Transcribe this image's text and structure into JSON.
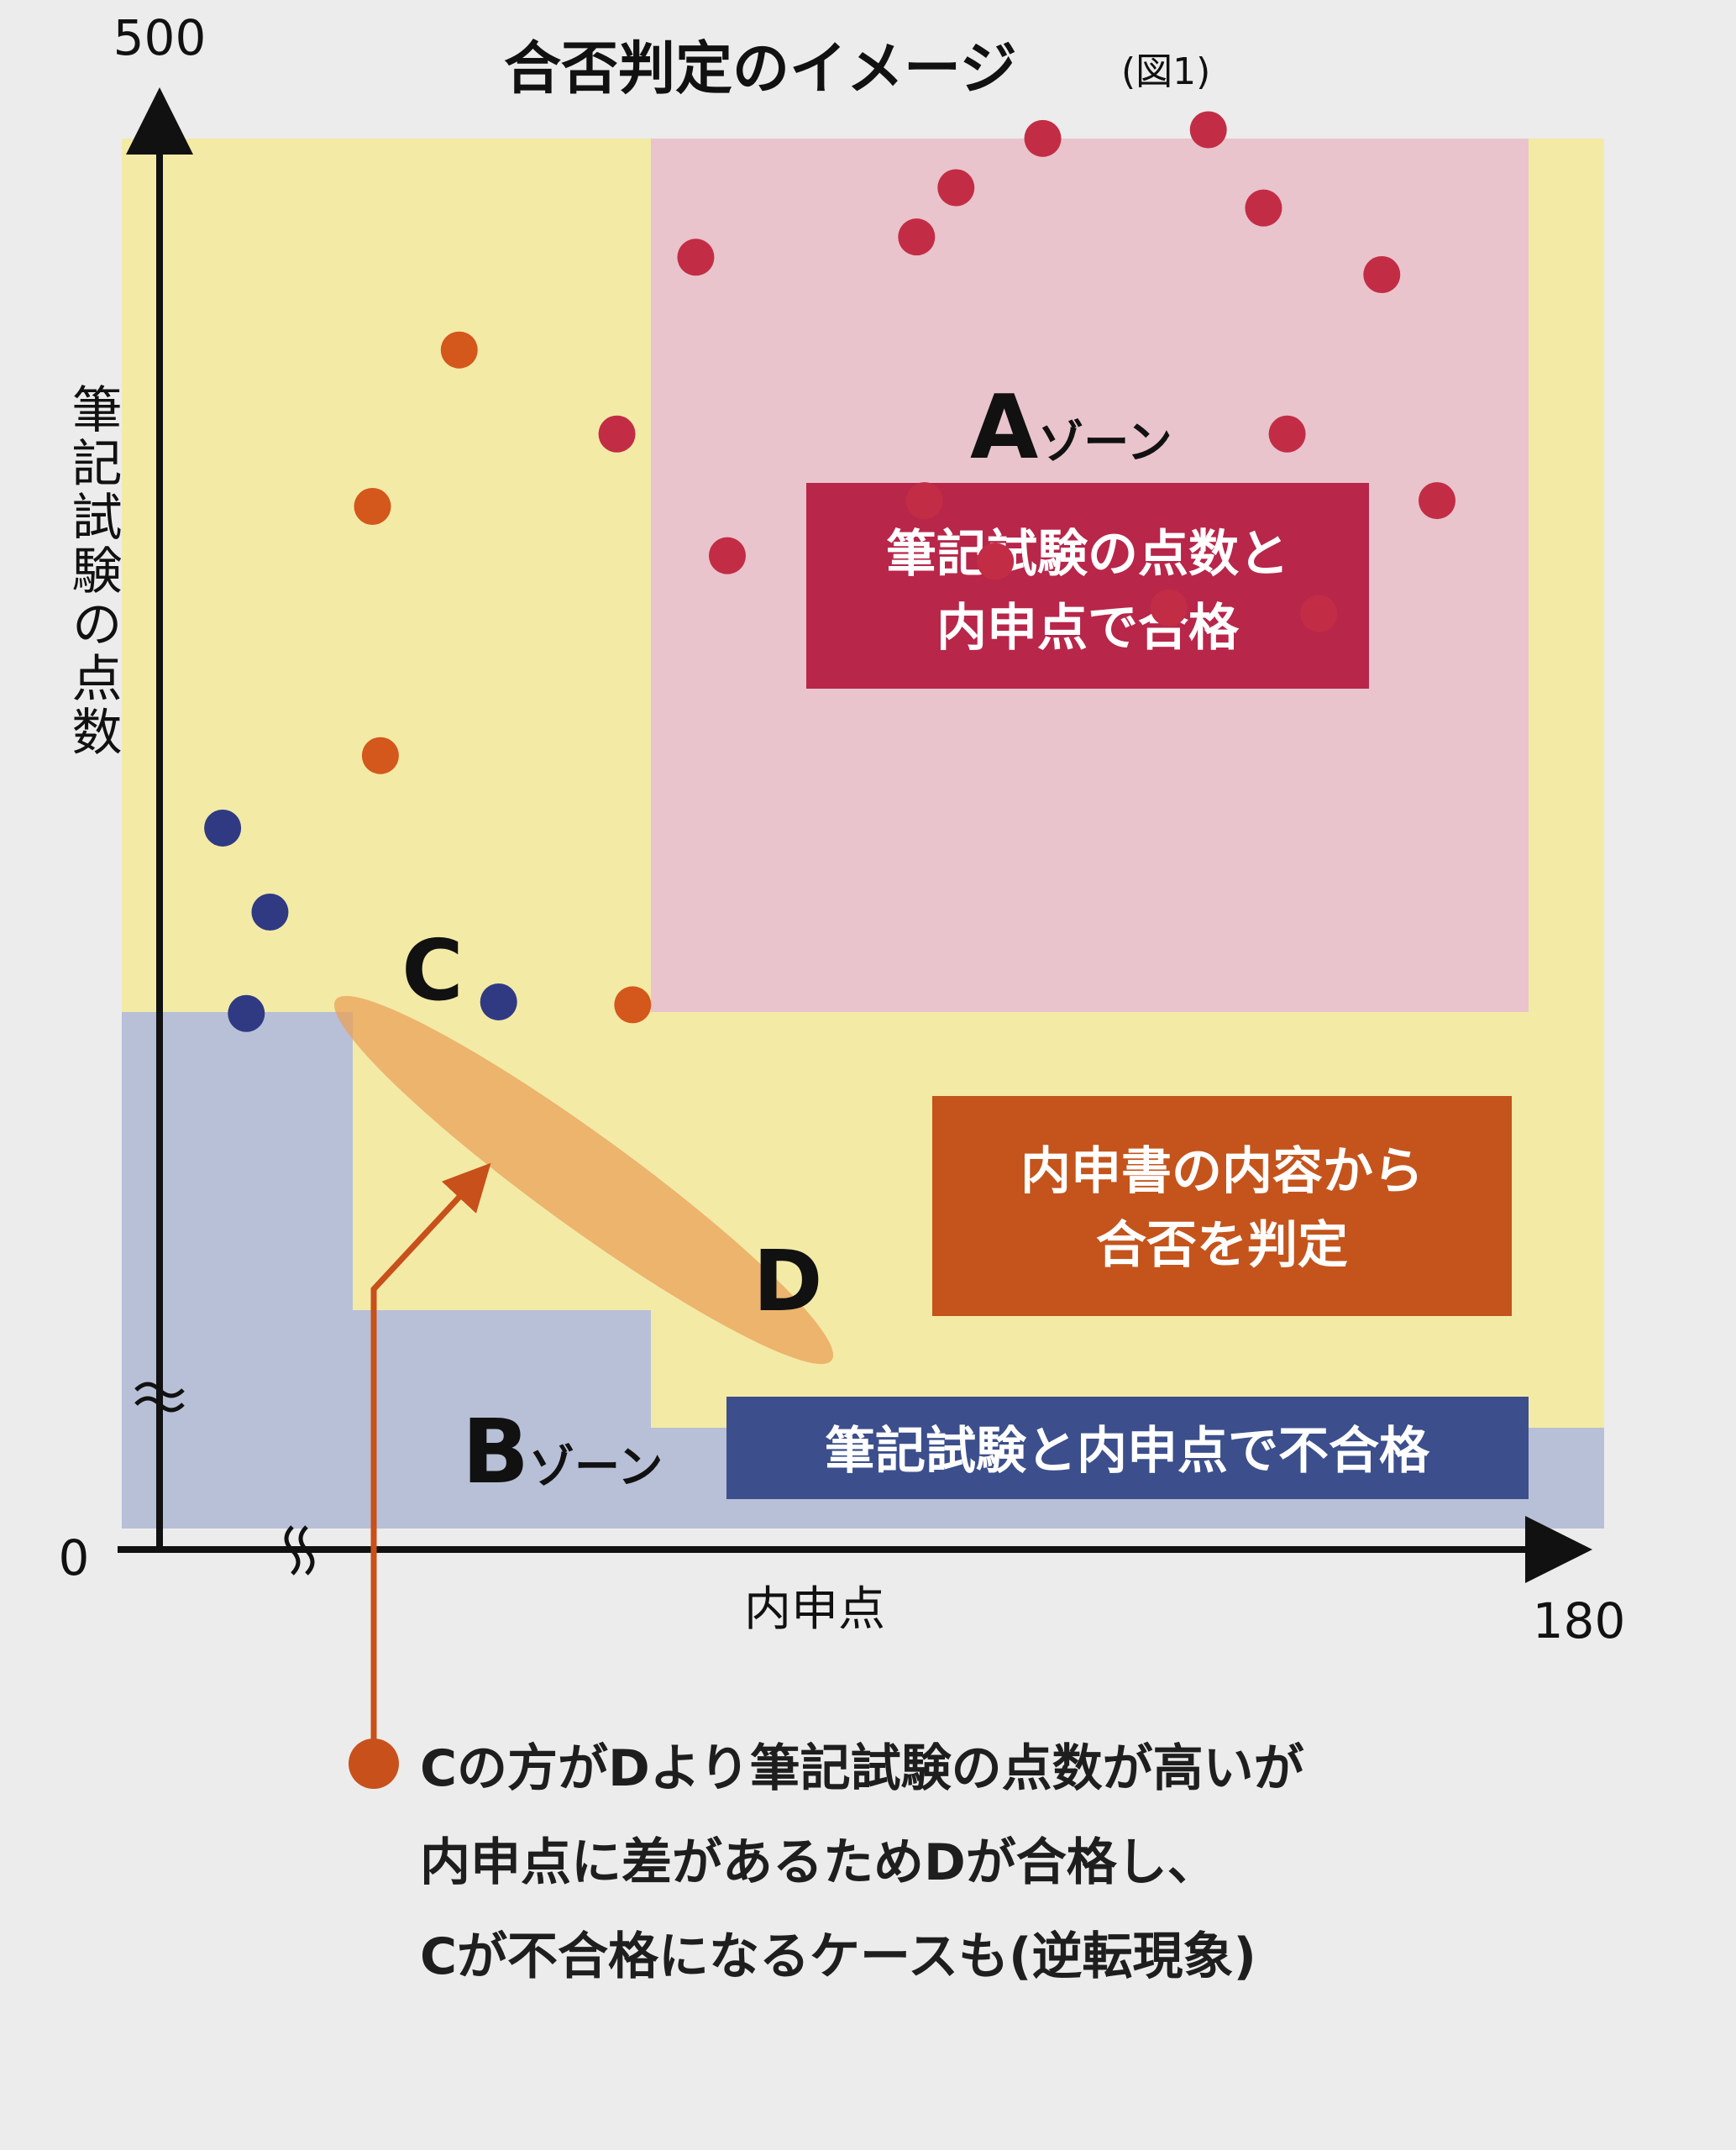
{
  "chart_data": {
    "type": "scatter",
    "title": "合否判定のイメージ",
    "figure_label": "(図1)",
    "xlabel": "内申点",
    "ylabel": "筆記試験の点数",
    "x_ticks": [
      "0",
      "180"
    ],
    "y_ticks": [
      "0",
      "500"
    ],
    "xlim": [
      0,
      180
    ],
    "ylim": [
      0,
      500
    ],
    "axis_breaks": true,
    "zones": [
      {
        "name": "Aゾーン",
        "letter": "A",
        "suffix": "ゾーン",
        "description_lines": [
          "筆記試験の点数と",
          "内申点で合格"
        ],
        "color": "#b8264a",
        "fill": "#e9c4cc"
      },
      {
        "name": "内申書",
        "description_lines": [
          "内申書の内容から",
          "合否を判定"
        ],
        "color": "#c4541c",
        "fill": "#f3eaa6"
      },
      {
        "name": "Bゾーン",
        "letter": "B",
        "suffix": "ゾーン",
        "description_lines": [
          "筆記試験と内申点で不合格"
        ],
        "color": "#3c4f8c",
        "fill": "#b7c0d6"
      }
    ],
    "series": [
      {
        "zone": "A",
        "color": "#c22d45",
        "points": [
          [
            112,
            487
          ],
          [
            133,
            490
          ],
          [
            101,
            470
          ],
          [
            140,
            463
          ],
          [
            96,
            453
          ],
          [
            155,
            440
          ],
          [
            68,
            446
          ],
          [
            143,
            385
          ],
          [
            58,
            385
          ],
          [
            97,
            362
          ],
          [
            162,
            362
          ],
          [
            72,
            343
          ],
          [
            106,
            341
          ],
          [
            128,
            325
          ],
          [
            147,
            323
          ]
        ]
      },
      {
        "zone": "middle",
        "color": "#d4571c",
        "points": [
          [
            38,
            414
          ],
          [
            27,
            360
          ]
        ]
      },
      {
        "zone": "B",
        "color": "#2f3a83",
        "points": [
          [
            8,
            249
          ],
          [
            14,
            220
          ],
          [
            11,
            185
          ],
          [
            43,
            189
          ]
        ]
      }
    ],
    "highlight_points": [
      {
        "label": "C",
        "x": 28,
        "y": 274,
        "color": "#d4571c"
      },
      {
        "label": "D",
        "x": 60,
        "y": 188,
        "color": "#d4571c"
      }
    ]
  },
  "caption_lines": [
    "Cの方がDより筆記試験の点数が高いが",
    "内申点に差があるためDが合格し、",
    "Cが不合格になるケースも(逆転現象)"
  ]
}
